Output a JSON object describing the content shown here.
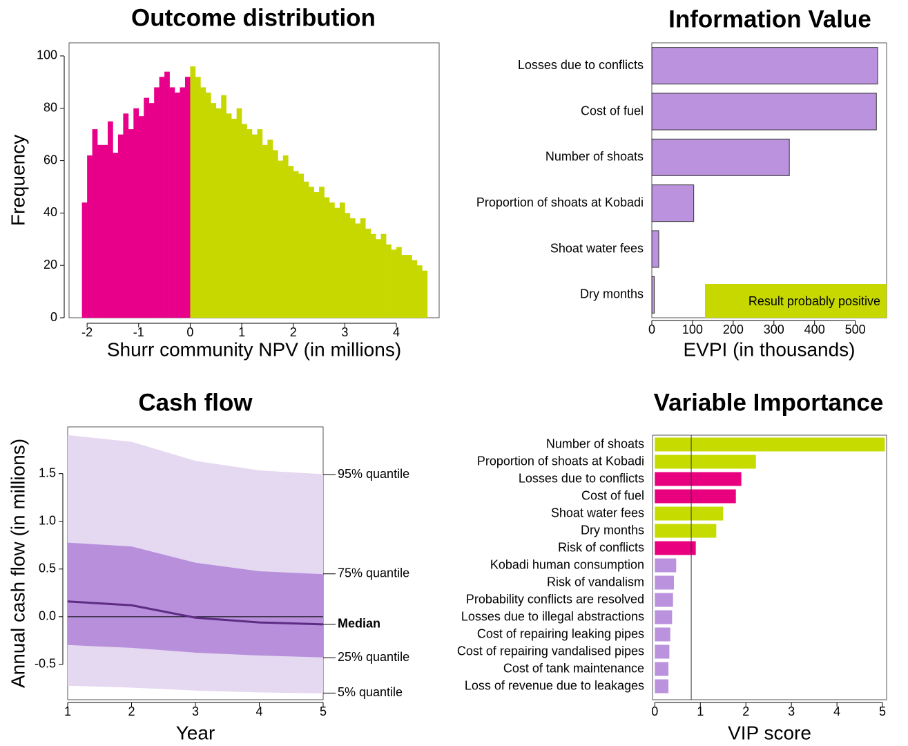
{
  "chart_data": [
    {
      "type": "histogram",
      "title": "Outcome distribution",
      "x_label": "Shurr community NPV (in millions)",
      "y_label": "Frequency",
      "series": [
        {
          "color": "#e8008a",
          "bins": [
            -2.1,
            -2,
            -1.9,
            -1.8,
            -1.7,
            -1.6,
            -1.5,
            -1.4,
            -1.3,
            -1.2,
            -1.1,
            -1,
            -0.9,
            -0.8,
            -0.7,
            -0.6,
            -0.5,
            -0.4,
            -0.3,
            -0.2,
            -0.1,
            0
          ],
          "values": [
            44,
            62,
            72,
            66,
            66,
            75,
            63,
            70,
            78,
            72,
            80,
            77,
            84,
            82,
            88,
            92,
            94,
            88,
            86,
            88,
            92
          ]
        },
        {
          "color": "#c6d800",
          "bins": [
            0,
            0.1,
            0.2,
            0.3,
            0.4,
            0.5,
            0.6,
            0.7,
            0.8,
            0.9,
            1,
            1.1,
            1.2,
            1.3,
            1.4,
            1.5,
            1.6,
            1.7,
            1.8,
            1.9,
            2,
            2.1,
            2.2,
            2.3,
            2.4,
            2.5,
            2.6,
            2.7,
            2.8,
            2.9,
            3,
            3.1,
            3.2,
            3.3,
            3.4,
            3.5,
            3.6,
            3.7,
            3.8,
            3.9,
            4,
            4.1,
            4.2,
            4.3,
            4.4,
            4.5,
            4.6
          ],
          "values": [
            96,
            92,
            88,
            86,
            82,
            80,
            85,
            78,
            76,
            80,
            74,
            72,
            70,
            72,
            66,
            68,
            64,
            60,
            62,
            58,
            56,
            55,
            52,
            50,
            48,
            50,
            46,
            44,
            42,
            44,
            40,
            38,
            36,
            38,
            34,
            32,
            30,
            32,
            28,
            26,
            27,
            24,
            24,
            22,
            20,
            18
          ]
        }
      ],
      "xlim": [
        -2.35,
        4.83
      ],
      "xticks": [
        -2,
        -1,
        0,
        1,
        2,
        3,
        4
      ],
      "ylim": [
        0,
        105
      ],
      "yticks": [
        0,
        20,
        40,
        60,
        80,
        100
      ]
    },
    {
      "type": "hbar",
      "title": "Information Value",
      "x_label": "EVPI (in thousands)",
      "categories": [
        "Losses due to conflicts",
        "Cost of fuel",
        "Number of shoats",
        "Proportion of shoats at Kobadi",
        "Shoat water fees",
        "Dry months"
      ],
      "values": [
        555,
        552,
        338,
        103,
        17,
        6
      ],
      "color": "#bb92dd",
      "xlim": [
        0,
        577
      ],
      "xticks": [
        0,
        100,
        200,
        300,
        400,
        500
      ],
      "annotation": {
        "text": "Result probably positive",
        "color": "#c6d800"
      }
    },
    {
      "type": "fan",
      "title": "Cash flow",
      "x_label": "Year",
      "y_label": "Annual cash flow (in millions)",
      "x": [
        1,
        2,
        3,
        4,
        5
      ],
      "series": [
        {
          "name": "95% quantile",
          "values": [
            1.9,
            1.83,
            1.63,
            1.53,
            1.49
          ]
        },
        {
          "name": "75% quantile",
          "values": [
            0.78,
            0.74,
            0.57,
            0.48,
            0.45
          ]
        },
        {
          "name": "Median",
          "values": [
            0.16,
            0.12,
            -0.01,
            -0.06,
            -0.08
          ]
        },
        {
          "name": "25% quantile",
          "values": [
            -0.3,
            -0.33,
            -0.38,
            -0.41,
            -0.43
          ]
        },
        {
          "name": "5% quantile",
          "values": [
            -0.72,
            -0.74,
            -0.77,
            -0.79,
            -0.8
          ]
        }
      ],
      "band_colors": [
        "#e5d8f1",
        "#b88fdb"
      ],
      "median_color": "#5b2c83",
      "xlim": [
        1,
        5
      ],
      "xticks": [
        1,
        2,
        3,
        4,
        5
      ],
      "ylim": [
        -0.87,
        1.99
      ],
      "yticks": [
        -0.5,
        {
          "value": 0,
          "label": "0.0"
        },
        0.5,
        {
          "value": 1,
          "label": "1.0"
        },
        1.5
      ]
    },
    {
      "type": "hbar",
      "title": "Variable Importance",
      "x_label": "VIP score",
      "categories": [
        "Number of shoats",
        "Proportion of shoats at Kobadi",
        "Losses due to conflicts",
        "Cost of fuel",
        "Shoat water fees",
        "Dry months",
        "Risk of conflicts",
        "Kobadi human consumption",
        "Risk of vandalism",
        "Probability conflicts are resolved",
        "Losses due to illegal abstractions",
        "Cost of repairing leaking pipes",
        "Cost of repairing vandalised pipes",
        "Cost of tank maintenance",
        "Loss of revenue due to leakages"
      ],
      "values": [
        5.05,
        2.22,
        1.9,
        1.78,
        1.5,
        1.35,
        0.9,
        0.47,
        0.42,
        0.4,
        0.38,
        0.34,
        0.32,
        0.3,
        0.3
      ],
      "colors": [
        "#c6dc00",
        "#c6dc00",
        "#e8007e",
        "#e8007e",
        "#c6dc00",
        "#c6dc00",
        "#e8007e",
        "#bb92dd",
        "#bb92dd",
        "#bb92dd",
        "#bb92dd",
        "#bb92dd",
        "#bb92dd",
        "#bb92dd",
        "#bb92dd"
      ],
      "reference_line": 0.8,
      "xlim": [
        -0.05,
        5.09
      ],
      "xticks": [
        0,
        1,
        2,
        3,
        4,
        5
      ]
    }
  ]
}
